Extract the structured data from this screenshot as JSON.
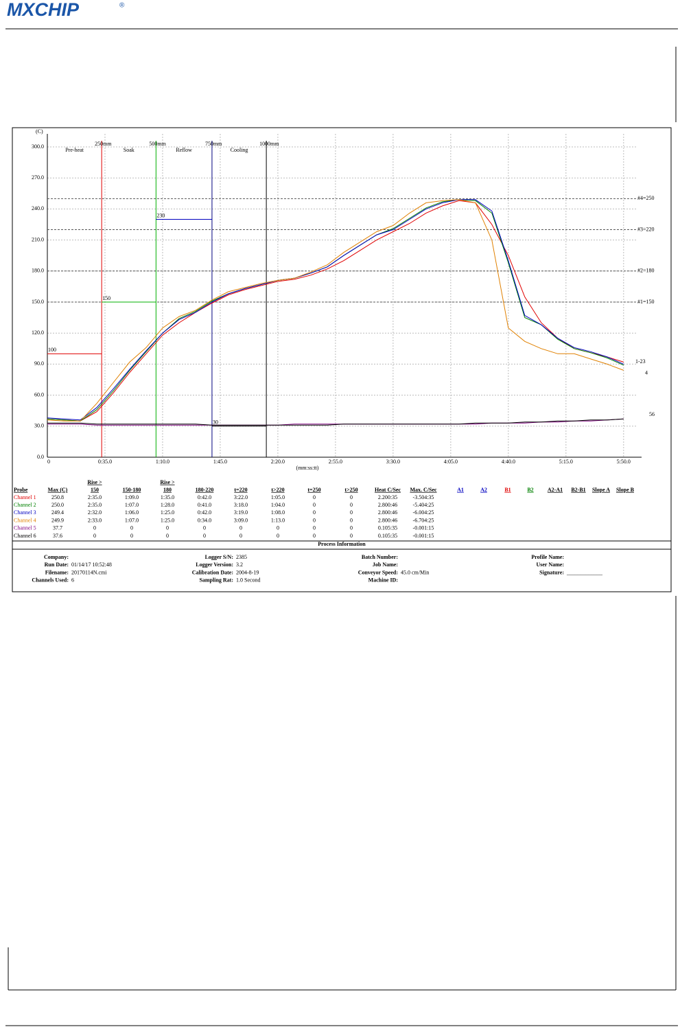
{
  "header": {
    "logo": "MXCHIP",
    "registered": "®"
  },
  "chart_data": {
    "type": "line",
    "y_label": "(C)",
    "x_label": "(mm:ss:tt)",
    "x": [
      0,
      10,
      20,
      30,
      40,
      50,
      60,
      70,
      80,
      90,
      100,
      110,
      120,
      130,
      140,
      150,
      160,
      170,
      180,
      190,
      200,
      210,
      220,
      230,
      240,
      250,
      260,
      270,
      280,
      290,
      300,
      310,
      320,
      330,
      340,
      350
    ],
    "series": [
      {
        "name": "Channel 1",
        "color": "#e00000",
        "values": [
          37,
          36,
          35,
          44,
          62,
          82,
          100,
          118,
          130,
          140,
          149,
          157,
          162,
          166,
          170,
          172,
          176,
          182,
          190,
          200,
          210,
          218,
          226,
          236,
          243,
          248,
          246,
          225,
          195,
          155,
          130,
          115,
          105,
          101,
          97,
          92
        ]
      },
      {
        "name": "Channel 2",
        "color": "#008000",
        "values": [
          37,
          36,
          35,
          46,
          64,
          84,
          102,
          120,
          134,
          141,
          151,
          158,
          163,
          167,
          171,
          173,
          178,
          184,
          195,
          205,
          215,
          221,
          231,
          241,
          247,
          249,
          248,
          236,
          188,
          135,
          128,
          114,
          105,
          101,
          96,
          89
        ]
      },
      {
        "name": "Channel 3",
        "color": "#0000c0",
        "values": [
          38,
          37,
          36,
          48,
          66,
          85,
          103,
          120,
          133,
          140,
          150,
          158,
          163,
          167,
          171,
          173,
          178,
          184,
          195,
          205,
          215,
          220,
          230,
          240,
          246,
          249,
          249,
          238,
          190,
          137,
          128,
          115,
          106,
          102,
          97,
          90
        ]
      },
      {
        "name": "Channel 4",
        "color": "#e08000",
        "values": [
          36,
          35,
          35,
          52,
          72,
          92,
          106,
          125,
          136,
          142,
          152,
          160,
          164,
          168,
          171,
          173,
          179,
          186,
          198,
          208,
          218,
          224,
          236,
          246,
          248,
          249,
          246,
          210,
          125,
          112,
          105,
          100,
          100,
          95,
          90,
          84
        ]
      },
      {
        "name": "Channel 5",
        "color": "#800080",
        "values": [
          32,
          32,
          32,
          31,
          31,
          31,
          31,
          31,
          31,
          31,
          31,
          31,
          31,
          31,
          31,
          32,
          32,
          32,
          32,
          32,
          32,
          32,
          32,
          32,
          32,
          32,
          32,
          33,
          33,
          33,
          34,
          34,
          35,
          35,
          36,
          37
        ]
      },
      {
        "name": "Channel 6",
        "color": "#000000",
        "values": [
          33,
          33,
          33,
          32,
          32,
          32,
          32,
          32,
          32,
          32,
          31,
          31,
          31,
          31,
          31,
          31,
          31,
          31,
          32,
          32,
          32,
          32,
          32,
          32,
          32,
          32,
          33,
          33,
          33,
          34,
          34,
          35,
          35,
          36,
          36,
          37
        ]
      }
    ],
    "end_labels": [
      "1-23",
      "4",
      "56"
    ],
    "xlim": [
      0,
      358
    ],
    "ylim": [
      0,
      300
    ],
    "xticks": [
      0,
      {
        "value": 35,
        "label": "0:35.0"
      },
      {
        "value": 70,
        "label": "1:10.0"
      },
      {
        "value": 105,
        "label": "1:45.0"
      },
      {
        "value": 140,
        "label": "2:20.0"
      },
      {
        "value": 175,
        "label": "2:55.0"
      },
      {
        "value": 210,
        "label": "3:30.0"
      },
      {
        "value": 245,
        "label": "4:05.0"
      },
      {
        "value": 280,
        "label": "4:40.0"
      },
      {
        "value": 315,
        "label": "5:15.0"
      },
      {
        "value": 350,
        "label": "5:50.0"
      }
    ],
    "yticks": [
      {
        "value": 0,
        "label": "0.0"
      },
      {
        "value": 30,
        "label": "30.0"
      },
      {
        "value": 60,
        "label": "60.0"
      },
      {
        "value": 90,
        "label": "90.0"
      },
      {
        "value": 120,
        "label": "120.0"
      },
      {
        "value": 150,
        "label": "150.0"
      },
      {
        "value": 180,
        "label": "180.0"
      },
      {
        "value": 210,
        "label": "210.0"
      },
      {
        "value": 240,
        "label": "240.0"
      },
      {
        "value": 270,
        "label": "270.0"
      },
      {
        "value": 300,
        "label": "300.0"
      }
    ],
    "grid": true,
    "zones": [
      "Pre-heat",
      "Soak",
      "Reflow",
      "Cooling"
    ],
    "zone_lines": [
      {
        "x": 33,
        "label": "250mm",
        "color": "#e00000"
      },
      {
        "x": 66,
        "label": "500mm",
        "color": "#00b000"
      },
      {
        "x": 100,
        "label": "750mm",
        "color": "#000080"
      },
      {
        "x": 133,
        "label": "1000mm",
        "color": "#000000"
      }
    ],
    "levels": [
      {
        "value": 100,
        "label": "100",
        "from": 0,
        "to": 33,
        "color": "#e00000"
      },
      {
        "value": 150,
        "label": "150",
        "from": 33,
        "to": 66,
        "color": "#00b000"
      },
      {
        "value": 230,
        "label": "230",
        "from": 66,
        "to": 100,
        "color": "#0000c0"
      },
      {
        "value": 30,
        "label": "30",
        "from": 100,
        "to": 133,
        "color": "#000000"
      }
    ],
    "thresholds": [
      {
        "value": 250,
        "label": "#4=250"
      },
      {
        "value": 220,
        "label": "#3=220"
      },
      {
        "value": 180,
        "label": "#2=180"
      },
      {
        "value": 150,
        "label": "#1=150"
      }
    ]
  },
  "table": {
    "rise_label": "Rise >",
    "columns": [
      "Probe",
      "Max (C)",
      "150",
      "150-180",
      "180",
      "180-220",
      "t=220",
      "t>220",
      "t=250",
      "t>250",
      "Heat C/Sec",
      "Max. C/Sec",
      "A1",
      "A2",
      "B1",
      "B2",
      "A2-A1",
      "B2-B1",
      "Slope A",
      "Slope B"
    ],
    "column_colors": [
      {
        "index": 12,
        "color": "#0000c0"
      },
      {
        "index": 13,
        "color": "#0000c0"
      },
      {
        "index": 14,
        "color": "#e00000"
      },
      {
        "index": 15,
        "color": "#008000"
      }
    ],
    "rows": [
      [
        "Channel 1",
        "250.8",
        "2:35.0",
        "1:09.0",
        "1:35.0",
        "0:42.0",
        "3:22.0",
        "1:05.0",
        "0",
        "0",
        "2.200:35",
        "-3.504:35"
      ],
      [
        "Channel 2",
        "250.0",
        "2:35.0",
        "1:07.0",
        "1:28.0",
        "0:41.0",
        "3:18.0",
        "1:04.0",
        "0",
        "0",
        "2.800:46",
        "-5.404:25"
      ],
      [
        "Channel 3",
        "249.4",
        "2:32.0",
        "1:06.0",
        "1:25.0",
        "0:42.0",
        "3:19.0",
        "1:08.0",
        "0",
        "0",
        "2.800:46",
        "-6.004:25"
      ],
      [
        "Channel 4",
        "249.9",
        "2:33.0",
        "1:07.0",
        "1:25.0",
        "0:34.0",
        "3:09.0",
        "1:13.0",
        "0",
        "0",
        "2.800:46",
        "-6.704:25"
      ],
      [
        "Channel 5",
        "37.7",
        "0",
        "0",
        "0",
        "0",
        "0",
        "0",
        "0",
        "0",
        "0.105:35",
        "-0.001:15"
      ],
      [
        "Channel 6",
        "37.6",
        "0",
        "0",
        "0",
        "0",
        "0",
        "0",
        "0",
        "0",
        "0.105:35",
        "-0.001:15"
      ]
    ]
  },
  "process": {
    "title": "Process Information",
    "columns": [
      [
        [
          "Company:",
          ""
        ],
        [
          "Run Date:",
          "01/14/17 10:52:48"
        ],
        [
          "Filename:",
          "20170114N.cmi"
        ],
        [
          "Channels Used:",
          "6"
        ]
      ],
      [
        [
          "Logger S/N:",
          "2385"
        ],
        [
          "Logger Version:",
          "3.2"
        ],
        [
          "Calibration Date:",
          "2004-8-19"
        ],
        [
          "Sampling Rat:",
          "1.0 Second"
        ]
      ],
      [
        [
          "Batch Number:",
          ""
        ],
        [
          "Job Name:",
          ""
        ],
        [
          "Conveyor Speed:",
          "45.0 cm/Min"
        ],
        [
          "Machine ID:",
          ""
        ]
      ],
      [
        [
          "Profile Name:",
          ""
        ],
        [
          "User Name:",
          ""
        ],
        [
          "Signature:",
          "_____________"
        ]
      ]
    ]
  }
}
